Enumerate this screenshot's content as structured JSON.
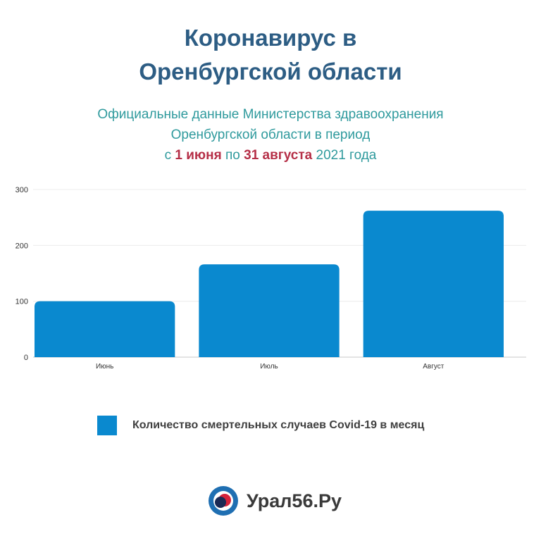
{
  "header": {
    "title_line1": "Коронавирус в",
    "title_line2": "Оренбургской области",
    "subtitle_line1": "Официальные данные Министерства здравоохранения",
    "subtitle_line2": "Оренбургской области в период",
    "subtitle_prefix": "с",
    "subtitle_start": "1 июня",
    "subtitle_mid": "по",
    "subtitle_end": "31 августа",
    "subtitle_suffix": "2021 года"
  },
  "colors": {
    "title": "#2d5d84",
    "subtitle": "#2f9a9d",
    "accent": "#b52f47",
    "bar": "#0a89cf"
  },
  "chart_data": {
    "type": "bar",
    "categories": [
      "Июнь",
      "Июль",
      "Август"
    ],
    "series": [
      {
        "name": "Количество смертельных случаев Covid-19 в месяц",
        "values": [
          100,
          166,
          262
        ]
      }
    ],
    "yticks": [
      0,
      100,
      200,
      300
    ],
    "ylim": [
      0,
      300
    ],
    "grid": true,
    "legend_position": "bottom"
  },
  "legend": {
    "label": "Количество смертельных случаев Covid-19 в месяц"
  },
  "footer": {
    "brand": "Урал56.Ру",
    "logo_icon": "ural56-logo-icon"
  }
}
